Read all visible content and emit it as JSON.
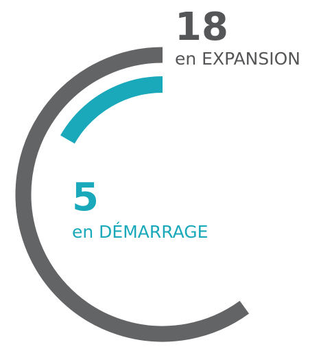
{
  "chart_data": {
    "type": "radial",
    "ylim": [
      0,
      30
    ],
    "series": [
      {
        "name": "en EXPANSION",
        "color": "#636466",
        "values": [
          18
        ]
      },
      {
        "name": "en DÉMARRAGE",
        "color": "#19a9bb",
        "values": [
          5
        ]
      }
    ]
  }
}
